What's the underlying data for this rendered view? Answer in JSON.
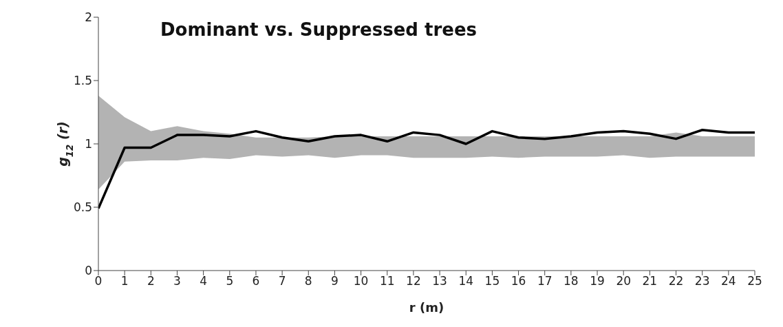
{
  "chart_data": {
    "type": "line",
    "title": "Dominant vs. Suppressed trees",
    "xlabel": "r (m)",
    "ylabel": "g$_{12}$ (r)",
    "x": [
      0,
      1,
      2,
      3,
      4,
      5,
      6,
      7,
      8,
      9,
      10,
      11,
      12,
      13,
      14,
      15,
      16,
      17,
      18,
      19,
      20,
      21,
      22,
      23,
      24,
      25
    ],
    "series": [
      {
        "color": "#000000",
        "values": [
          0.49,
          0.97,
          0.97,
          1.07,
          1.07,
          1.06,
          1.1,
          1.05,
          1.02,
          1.06,
          1.07,
          1.02,
          1.09,
          1.07,
          1.0,
          1.1,
          1.05,
          1.04,
          1.06,
          1.09,
          1.1,
          1.08,
          1.04,
          1.11,
          1.09,
          1.09
        ],
        "lower": [
          0.64,
          0.86,
          0.87,
          0.87,
          0.89,
          0.88,
          0.91,
          0.9,
          0.91,
          0.89,
          0.91,
          0.91,
          0.89,
          0.89,
          0.89,
          0.9,
          0.89,
          0.9,
          0.9,
          0.9,
          0.91,
          0.89,
          0.9,
          0.9,
          0.9,
          0.9
        ],
        "upper": [
          1.38,
          1.21,
          1.1,
          1.14,
          1.1,
          1.08,
          1.05,
          1.05,
          1.05,
          1.06,
          1.06,
          1.06,
          1.06,
          1.06,
          1.06,
          1.06,
          1.06,
          1.06,
          1.06,
          1.06,
          1.06,
          1.06,
          1.09,
          1.06,
          1.06,
          1.06
        ]
      }
    ],
    "xlim": [
      0,
      25
    ],
    "xticks": [
      0,
      1,
      2,
      3,
      4,
      5,
      6,
      7,
      8,
      9,
      10,
      11,
      12,
      13,
      14,
      15,
      16,
      17,
      18,
      19,
      20,
      21,
      22,
      23,
      24,
      25
    ],
    "ylim": [
      0,
      2
    ],
    "yticks": [
      0,
      0.5,
      1,
      1.5,
      2
    ],
    "grid": false,
    "legend": false,
    "marker": "none",
    "line_style": "solid"
  }
}
